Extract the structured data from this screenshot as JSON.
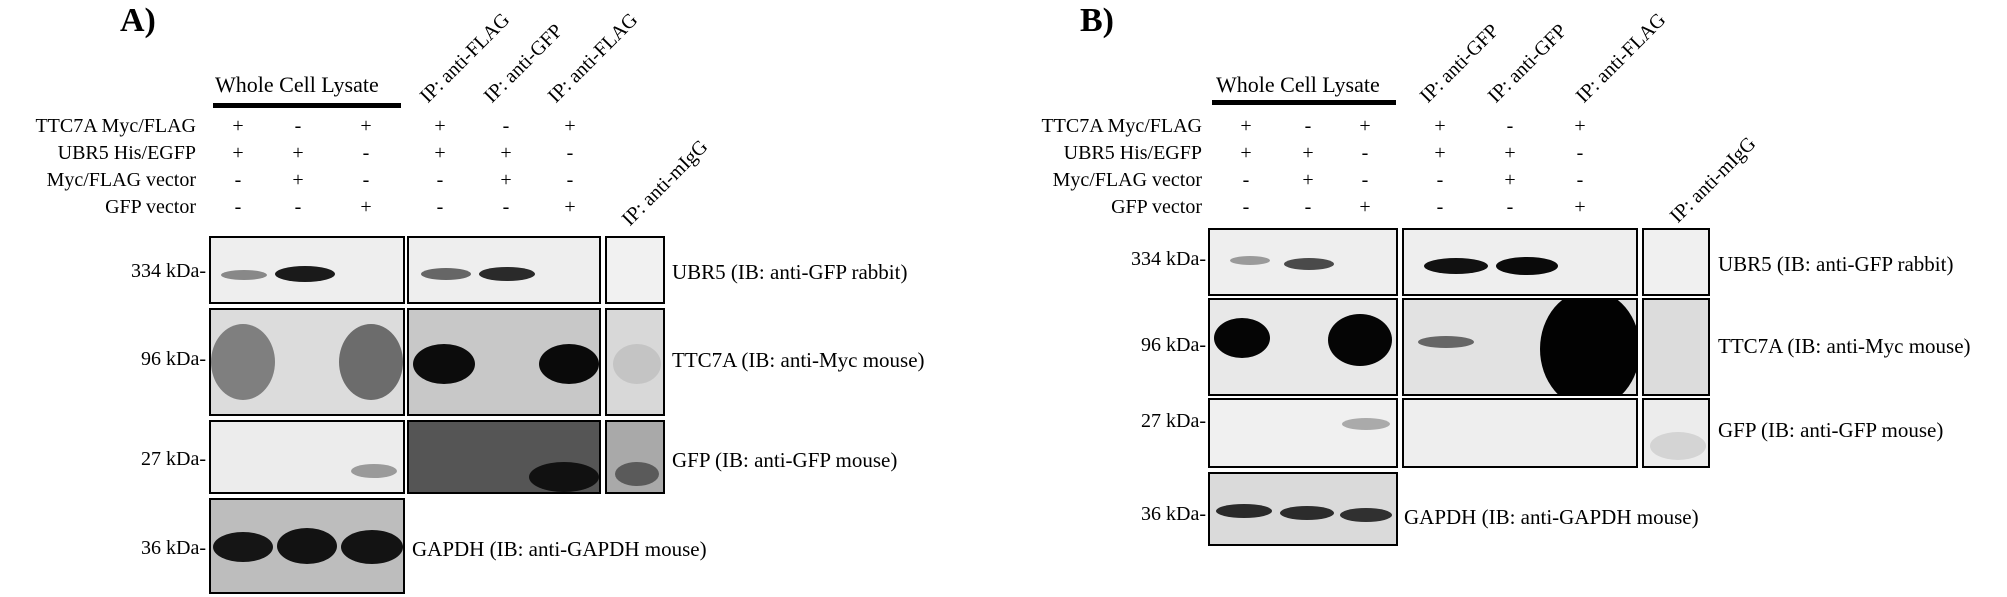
{
  "panel_a": {
    "letter": "A)",
    "wcl_header": "Whole Cell Lysate",
    "ip_headers": [
      "IP: anti-FLAG",
      "IP: anti-GFP",
      "IP: anti-FLAG"
    ],
    "igg_header": "IP: anti-mIgG",
    "row_labels": [
      "TTC7A Myc/FLAG",
      "UBR5 His/EGFP",
      "Myc/FLAG vector",
      "GFP vector"
    ],
    "lanes": [
      [
        "+",
        "-",
        "+",
        "+",
        "-",
        "+"
      ],
      [
        "+",
        "+",
        "-",
        "+",
        "+",
        "-"
      ],
      [
        "-",
        "+",
        "-",
        "-",
        "+",
        "-"
      ],
      [
        "-",
        "-",
        "+",
        "-",
        "-",
        "+"
      ]
    ],
    "markers": [
      "334 kDa-",
      "96 kDa-",
      "27 kDa-",
      "36 kDa-"
    ],
    "blot_labels": [
      "UBR5 (IB: anti-GFP rabbit)",
      "TTC7A (IB: anti-Myc mouse)",
      "GFP (IB: anti-GFP mouse)",
      "GAPDH (IB: anti-GAPDH mouse)"
    ]
  },
  "panel_b": {
    "letter": "B)",
    "wcl_header": "Whole Cell Lysate",
    "ip_headers": [
      "IP: anti-GFP",
      "IP: anti-GFP",
      "IP: anti-FLAG"
    ],
    "igg_header": "IP: anti-mIgG",
    "row_labels": [
      "TTC7A Myc/FLAG",
      "UBR5 His/EGFP",
      "Myc/FLAG vector",
      "GFP vector"
    ],
    "lanes": [
      [
        "+",
        "-",
        "+",
        "+",
        "-",
        "+"
      ],
      [
        "+",
        "+",
        "-",
        "+",
        "+",
        "-"
      ],
      [
        "-",
        "+",
        "-",
        "-",
        "+",
        "-"
      ],
      [
        "-",
        "-",
        "+",
        "-",
        "-",
        "+"
      ]
    ],
    "markers": [
      "334 kDa-",
      "96 kDa-",
      "27 kDa-",
      "36 kDa-"
    ],
    "blot_labels": [
      "UBR5 (IB: anti-GFP rabbit)",
      "TTC7A (IB: anti-Myc mouse)",
      "GFP (IB: anti-GFP mouse)",
      "GAPDH (IB: anti-GAPDH mouse)"
    ]
  }
}
